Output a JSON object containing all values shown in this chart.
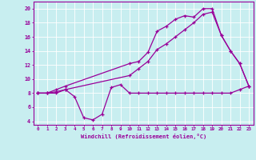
{
  "xlabel": "Windchill (Refroidissement éolien,°C)",
  "xlim": [
    -0.5,
    23.5
  ],
  "ylim": [
    3.5,
    21
  ],
  "xticks": [
    0,
    1,
    2,
    3,
    4,
    5,
    6,
    7,
    8,
    9,
    10,
    11,
    12,
    13,
    14,
    15,
    16,
    17,
    18,
    19,
    20,
    21,
    22,
    23
  ],
  "yticks": [
    4,
    6,
    8,
    10,
    12,
    14,
    16,
    18,
    20
  ],
  "bg_color": "#c8eef0",
  "line_color": "#990099",
  "grid_color": "#aadddd",
  "line1_x": [
    0,
    1,
    2,
    3,
    4,
    5,
    6,
    7,
    8,
    9,
    10,
    11,
    12,
    13,
    14,
    15,
    16,
    17,
    18,
    19,
    20,
    21,
    22,
    23
  ],
  "line1_y": [
    8,
    8,
    8,
    8.5,
    7.5,
    4.5,
    4.2,
    5.0,
    8.8,
    9.2,
    8.0,
    8.0,
    8.0,
    8.0,
    8.0,
    8.0,
    8.0,
    8.0,
    8.0,
    8.0,
    8.0,
    8.0,
    8.5,
    9.0
  ],
  "line2_x": [
    0,
    1,
    2,
    3,
    10,
    11,
    12,
    13,
    14,
    15,
    16,
    17,
    18,
    19,
    20,
    21,
    22,
    23
  ],
  "line2_y": [
    8,
    8,
    8.5,
    9.0,
    12.2,
    12.5,
    13.8,
    16.8,
    17.5,
    18.5,
    19.0,
    18.8,
    20.0,
    20.0,
    16.2,
    14.0,
    12.2,
    9.0
  ],
  "line3_x": [
    0,
    1,
    2,
    3,
    10,
    11,
    12,
    13,
    14,
    15,
    16,
    17,
    18,
    19,
    20,
    21,
    22,
    23
  ],
  "line3_y": [
    8,
    8,
    8.2,
    8.5,
    10.5,
    11.5,
    12.5,
    14.2,
    15.0,
    16.0,
    17.0,
    18.0,
    19.2,
    19.5,
    16.2,
    14.0,
    12.2,
    9.0
  ]
}
